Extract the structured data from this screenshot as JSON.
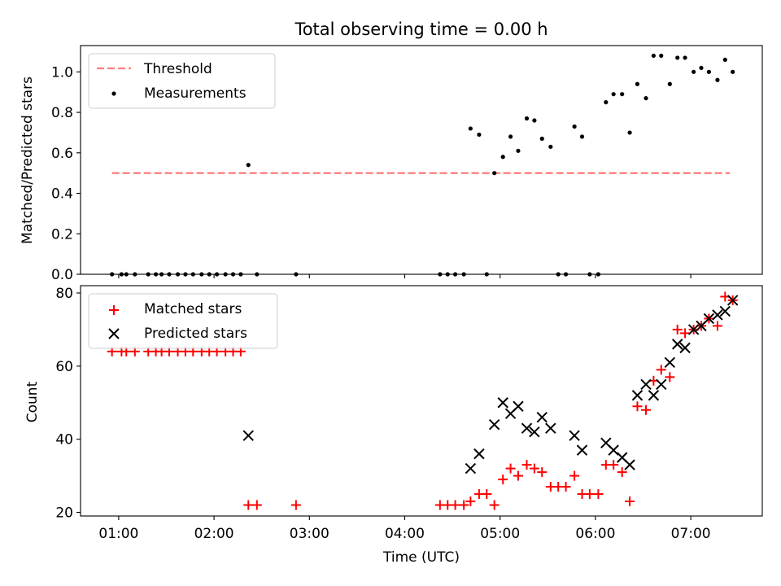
{
  "chart_data": {
    "title": "Total observing time = 0.00 h",
    "xlabel": "Time (UTC)",
    "x_ticks": [
      {
        "value": 1,
        "label": "01:00"
      },
      {
        "value": 2,
        "label": "02:00"
      },
      {
        "value": 3,
        "label": "03:00"
      },
      {
        "value": 4,
        "label": "04:00"
      },
      {
        "value": 5,
        "label": "05:00"
      },
      {
        "value": 6,
        "label": "06:00"
      },
      {
        "value": 7,
        "label": "07:00"
      }
    ],
    "xlim": [
      0.6,
      7.75
    ],
    "panels": [
      {
        "type": "scatter",
        "ylabel": "Matched/Predicted stars",
        "ylim": [
          0,
          1.13
        ],
        "y_ticks": [
          {
            "value": 0,
            "label": "0.0"
          },
          {
            "value": 0.2,
            "label": "0.2"
          },
          {
            "value": 0.4,
            "label": "0.4"
          },
          {
            "value": 0.6,
            "label": "0.6"
          },
          {
            "value": 0.8,
            "label": "0.8"
          },
          {
            "value": 1.0,
            "label": "1.0"
          }
        ],
        "legend_location": "upper-left",
        "series": [
          {
            "name": "Threshold",
            "kind": "dashed-line",
            "color": "#ff7f7f",
            "x": [
              0.93,
              7.41
            ],
            "y": [
              0.5,
              0.5
            ]
          },
          {
            "name": "Measurements",
            "kind": "dot",
            "color": "#000000",
            "x": [
              0.93,
              1.03,
              1.08,
              1.17,
              1.31,
              1.39,
              1.45,
              1.53,
              1.62,
              1.7,
              1.78,
              1.87,
              1.95,
              2.03,
              2.12,
              2.2,
              2.28,
              2.36,
              2.45,
              2.86,
              4.37,
              4.45,
              4.53,
              4.62,
              4.69,
              4.78,
              4.86,
              4.94,
              5.03,
              5.11,
              5.19,
              5.28,
              5.36,
              5.44,
              5.53,
              5.61,
              5.69,
              5.78,
              5.86,
              5.94,
              6.03,
              6.11,
              6.19,
              6.28,
              6.36,
              6.44,
              6.53,
              6.61,
              6.69,
              6.78,
              6.86,
              6.94,
              7.03,
              7.11,
              7.19,
              7.28,
              7.36,
              7.44
            ],
            "y": [
              0,
              0,
              0,
              0,
              0,
              0,
              0,
              0,
              0,
              0,
              0,
              0,
              0,
              0,
              0,
              0,
              0,
              0.54,
              0,
              0,
              0,
              0,
              0,
              0,
              0.72,
              0.69,
              0,
              0.5,
              0.58,
              0.68,
              0.61,
              0.77,
              0.76,
              0.67,
              0.63,
              0,
              0,
              0.73,
              0.68,
              0,
              0,
              0.85,
              0.89,
              0.89,
              0.7,
              0.94,
              0.87,
              1.08,
              1.08,
              0.94,
              1.07,
              1.07,
              1.0,
              1.02,
              1.0,
              0.96,
              1.06,
              1.0
            ]
          }
        ]
      },
      {
        "type": "scatter",
        "ylabel": "Count",
        "ylim": [
          19,
          82
        ],
        "y_ticks": [
          {
            "value": 20,
            "label": "20"
          },
          {
            "value": 40,
            "label": "40"
          },
          {
            "value": 60,
            "label": "60"
          },
          {
            "value": 80,
            "label": "80"
          }
        ],
        "legend_location": "upper-left",
        "series": [
          {
            "name": "Matched stars",
            "kind": "plus",
            "color": "#ff0000",
            "x": [
              0.93,
              1.03,
              1.08,
              1.17,
              1.31,
              1.39,
              1.45,
              1.53,
              1.62,
              1.7,
              1.78,
              1.87,
              1.95,
              2.03,
              2.12,
              2.2,
              2.28,
              2.36,
              2.45,
              2.86,
              4.37,
              4.45,
              4.53,
              4.62,
              4.69,
              4.78,
              4.86,
              4.94,
              5.03,
              5.11,
              5.19,
              5.28,
              5.36,
              5.44,
              5.53,
              5.61,
              5.69,
              5.78,
              5.86,
              5.94,
              6.03,
              6.11,
              6.19,
              6.28,
              6.36,
              6.44,
              6.53,
              6.61,
              6.69,
              6.78,
              6.86,
              6.94,
              7.03,
              7.11,
              7.19,
              7.28,
              7.36,
              7.44
            ],
            "y": [
              64,
              64,
              64,
              64,
              64,
              64,
              64,
              64,
              64,
              64,
              64,
              64,
              64,
              64,
              64,
              64,
              64,
              22,
              22,
              22,
              22,
              22,
              22,
              22,
              23,
              25,
              25,
              22,
              29,
              32,
              30,
              33,
              32,
              31,
              27,
              27,
              27,
              30,
              25,
              25,
              25,
              33,
              33,
              31,
              23,
              49,
              48,
              56,
              59,
              57,
              70,
              69,
              70,
              71,
              73,
              71,
              79,
              78
            ]
          },
          {
            "name": "Predicted stars",
            "kind": "cross",
            "color": "#000000",
            "x": [
              2.36,
              4.69,
              4.78,
              4.94,
              5.03,
              5.11,
              5.19,
              5.28,
              5.36,
              5.44,
              5.53,
              5.78,
              5.86,
              6.11,
              6.19,
              6.28,
              6.36,
              6.44,
              6.53,
              6.61,
              6.69,
              6.78,
              6.86,
              6.94,
              7.03,
              7.11,
              7.19,
              7.28,
              7.36,
              7.44
            ],
            "y": [
              41,
              32,
              36,
              44,
              50,
              47,
              49,
              43,
              42,
              46,
              43,
              41,
              37,
              39,
              37,
              35,
              33,
              52,
              55,
              52,
              55,
              61,
              66,
              65,
              70,
              71,
              73,
              74,
              75,
              78
            ]
          }
        ]
      }
    ]
  }
}
